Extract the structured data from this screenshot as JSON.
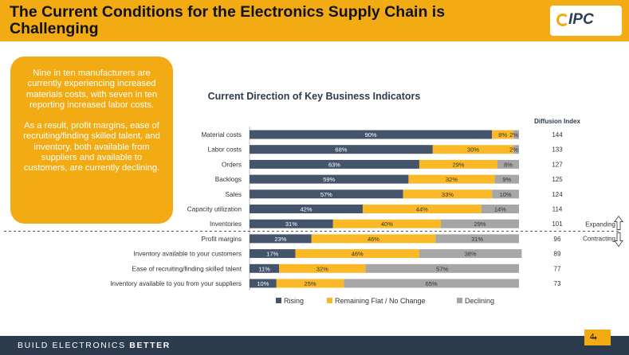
{
  "header": {
    "title": "The Current Conditions for the Electronics Supply Chain is Challenging",
    "logo_text": "IPC"
  },
  "callout": {
    "paragraph1": "Nine in ten manufacturers are currently experiencing increased materials costs, with seven in ten reporting increased labor costs.",
    "paragraph2": "As a result, profit margins, ease of recruiting/finding skilled talent, and inventory, both available from suppliers and available to customers, are currently declining."
  },
  "footer": {
    "tagline_part1": "BUILD ELECTRONICS",
    "tagline_part2": "BETTER",
    "page_number": "4",
    "page_arrow": "➞"
  },
  "colors": {
    "accent": "#f2ab13",
    "rising": "#44546a",
    "flat": "#fbb826",
    "declining": "#a6a6a6",
    "footer_bg": "#2d3b4e"
  },
  "chart_data": {
    "type": "bar",
    "orientation": "horizontal",
    "stacked": true,
    "title": "Current Direction of Key Business Indicators",
    "diffusion_header": "Diffusion Index",
    "categories": [
      "Material costs",
      "Labor costs",
      "Orders",
      "Backlogs",
      "Sales",
      "Capacity utilization",
      "Inventories",
      "Profit margins",
      "Inventory available to your customers",
      "Ease of recruiting/finding skilled talent",
      "Inventory available to you from your suppliers"
    ],
    "series": [
      {
        "name": "Rising",
        "values": [
          90,
          68,
          63,
          59,
          57,
          42,
          31,
          23,
          17,
          11,
          10
        ]
      },
      {
        "name": "Remaining Flat / No Change",
        "values": [
          8,
          30,
          29,
          32,
          33,
          44,
          40,
          46,
          46,
          32,
          25
        ]
      },
      {
        "name": "Declining",
        "values": [
          2,
          2,
          8,
          9,
          10,
          14,
          29,
          31,
          38,
          57,
          65
        ]
      }
    ],
    "diffusion_index": [
      144,
      133,
      127,
      125,
      124,
      114,
      101,
      96,
      89,
      77,
      73
    ],
    "divider_after_index": 6,
    "expanding_label": "Expanding",
    "contracting_label": "Contracting",
    "legend": [
      "Rising",
      "Remaining Flat / No Change",
      "Declining"
    ],
    "xlim": [
      0,
      100
    ]
  }
}
